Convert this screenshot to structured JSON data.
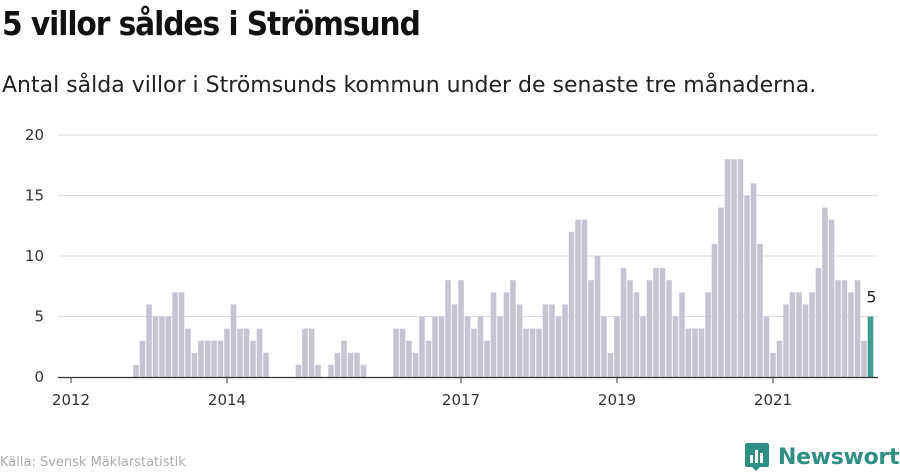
{
  "title": "5 villor såldes i Strömsund",
  "subtitle": "Antal sålda villor i Strömsunds kommun under de senaste tre månaderna.",
  "source": "Källa: Svensk Mäklarstatistik",
  "brand": "Newsworthy",
  "colors": {
    "bar": "#c6c4d2",
    "highlight": "#3f9e90",
    "grid": "#dddddd",
    "axis": "#333333",
    "brand": "#2f8f83"
  },
  "chart_data": {
    "type": "bar",
    "start_year": 2011,
    "start_month": 11,
    "x_ticks": [
      "2012",
      "2014",
      "2017",
      "2019",
      "2021"
    ],
    "y_ticks": [
      0,
      5,
      10,
      15,
      20
    ],
    "ylim": [
      0,
      20
    ],
    "values": [
      0,
      0,
      0,
      0,
      0,
      0,
      0,
      0,
      0,
      0,
      0,
      0,
      1,
      3,
      6,
      5,
      5,
      5,
      7,
      7,
      4,
      2,
      3,
      3,
      3,
      3,
      4,
      6,
      4,
      4,
      3,
      4,
      2,
      0,
      0,
      0,
      0,
      1,
      4,
      4,
      1,
      0,
      1,
      2,
      3,
      2,
      2,
      1,
      0,
      0,
      0,
      0,
      4,
      4,
      3,
      2,
      5,
      3,
      5,
      5,
      8,
      6,
      8,
      5,
      4,
      5,
      3,
      7,
      5,
      7,
      8,
      6,
      4,
      4,
      4,
      6,
      6,
      5,
      6,
      12,
      13,
      13,
      8,
      10,
      5,
      2,
      5,
      9,
      8,
      7,
      5,
      8,
      9,
      9,
      8,
      5,
      7,
      4,
      4,
      4,
      7,
      11,
      14,
      18,
      18,
      18,
      15,
      16,
      11,
      5,
      2,
      3,
      6,
      7,
      7,
      6,
      7,
      9,
      14,
      13,
      8,
      8,
      7,
      8,
      3,
      5
    ],
    "highlight_label": "5"
  }
}
